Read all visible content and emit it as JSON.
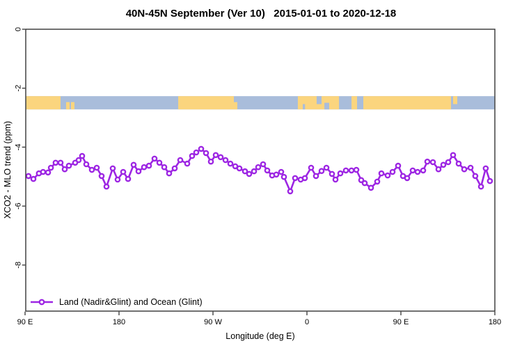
{
  "chart": {
    "title": "40N-45N September (Ver 10)   2015-01-01 to 2020-12-18",
    "x_axis": {
      "title": "Longitude (deg E)"
    },
    "y_axis": {
      "title": "XCO2 - MLO trend (ppm)"
    },
    "legend": {
      "label": "Land (Nadir&Glint) and Ocean (Glint)",
      "position": "bottom-left"
    },
    "colors": {
      "series": "#9D26E3",
      "land": "#FBD57E",
      "ocean": "#A9BDDB",
      "frame": "#333333",
      "text": "#000000",
      "background": "#FFFFFF"
    }
  },
  "chart_data": {
    "type": "line",
    "title": "40N-45N September (Ver 10)   2015-01-01 to 2020-12-18",
    "xlabel": "Longitude (deg E)",
    "ylabel": "XCO2 - MLO trend (ppm)",
    "xlim": [
      90,
      540
    ],
    "ylim": [
      -9.56,
      0
    ],
    "grid": false,
    "x_tick_positions": [
      90,
      180,
      270,
      360,
      450,
      540
    ],
    "x_tick_labels": [
      "90 E",
      "180",
      "90 W",
      "0",
      "90 E",
      "180"
    ],
    "y_tick_positions": [
      0,
      -2,
      -4,
      -6,
      -8
    ],
    "y_tick_labels": [
      "0",
      "-2",
      "-4",
      "-6",
      "-8"
    ],
    "legend_position": "bottom-left",
    "series": [
      {
        "name": "Land (Nadir&Glint) and Ocean (Glint)",
        "marker": "open-circle",
        "color": "#9D26E3",
        "points": [
          [
            93.3,
            -4.98
          ],
          [
            98.0,
            -5.08
          ],
          [
            103.3,
            -4.89
          ],
          [
            107.3,
            -4.84
          ],
          [
            112.0,
            -4.86
          ],
          [
            114.7,
            -4.7
          ],
          [
            119.3,
            -4.53
          ],
          [
            124.0,
            -4.53
          ],
          [
            128.0,
            -4.75
          ],
          [
            132.0,
            -4.63
          ],
          [
            138.0,
            -4.53
          ],
          [
            141.3,
            -4.44
          ],
          [
            144.7,
            -4.3
          ],
          [
            148.7,
            -4.58
          ],
          [
            154.0,
            -4.77
          ],
          [
            158.7,
            -4.7
          ],
          [
            163.3,
            -4.98
          ],
          [
            168.0,
            -5.34
          ],
          [
            174.0,
            -4.72
          ],
          [
            178.7,
            -5.1
          ],
          [
            184.0,
            -4.84
          ],
          [
            188.7,
            -5.08
          ],
          [
            194.0,
            -4.6
          ],
          [
            198.7,
            -4.82
          ],
          [
            204.0,
            -4.68
          ],
          [
            208.7,
            -4.63
          ],
          [
            214.0,
            -4.39
          ],
          [
            218.7,
            -4.53
          ],
          [
            223.3,
            -4.68
          ],
          [
            228.0,
            -4.89
          ],
          [
            233.3,
            -4.72
          ],
          [
            238.7,
            -4.44
          ],
          [
            245.3,
            -4.56
          ],
          [
            250.0,
            -4.3
          ],
          [
            254.0,
            -4.18
          ],
          [
            258.7,
            -4.06
          ],
          [
            263.3,
            -4.2
          ],
          [
            268.0,
            -4.49
          ],
          [
            272.7,
            -4.27
          ],
          [
            277.3,
            -4.34
          ],
          [
            282.0,
            -4.44
          ],
          [
            286.7,
            -4.56
          ],
          [
            291.3,
            -4.65
          ],
          [
            295.3,
            -4.72
          ],
          [
            300.7,
            -4.82
          ],
          [
            304.7,
            -4.91
          ],
          [
            309.3,
            -4.82
          ],
          [
            313.3,
            -4.68
          ],
          [
            318.0,
            -4.58
          ],
          [
            322.0,
            -4.79
          ],
          [
            326.7,
            -4.96
          ],
          [
            330.7,
            -4.93
          ],
          [
            335.3,
            -4.84
          ],
          [
            338.0,
            -5.01
          ],
          [
            344.0,
            -5.5
          ],
          [
            348.7,
            -5.05
          ],
          [
            354.0,
            -5.1
          ],
          [
            358.0,
            -5.05
          ],
          [
            364.0,
            -4.7
          ],
          [
            368.7,
            -4.98
          ],
          [
            374.0,
            -4.81
          ],
          [
            378.7,
            -4.7
          ],
          [
            384.0,
            -4.91
          ],
          [
            387.3,
            -5.1
          ],
          [
            392.0,
            -4.89
          ],
          [
            397.3,
            -4.79
          ],
          [
            402.7,
            -4.79
          ],
          [
            407.3,
            -4.77
          ],
          [
            412.0,
            -5.12
          ],
          [
            415.3,
            -5.22
          ],
          [
            421.3,
            -5.38
          ],
          [
            427.3,
            -5.17
          ],
          [
            431.3,
            -4.89
          ],
          [
            437.3,
            -4.96
          ],
          [
            442.0,
            -4.84
          ],
          [
            447.3,
            -4.63
          ],
          [
            452.0,
            -4.98
          ],
          [
            456.0,
            -5.05
          ],
          [
            461.3,
            -4.79
          ],
          [
            466.0,
            -4.84
          ],
          [
            471.3,
            -4.79
          ],
          [
            475.3,
            -4.49
          ],
          [
            480.7,
            -4.51
          ],
          [
            486.0,
            -4.75
          ],
          [
            490.7,
            -4.6
          ],
          [
            495.3,
            -4.51
          ],
          [
            500.0,
            -4.27
          ],
          [
            505.3,
            -4.56
          ],
          [
            510.7,
            -4.75
          ],
          [
            516.7,
            -4.7
          ],
          [
            521.3,
            -4.98
          ],
          [
            526.7,
            -5.34
          ],
          [
            531.3,
            -4.72
          ],
          [
            535.3,
            -5.15
          ]
        ]
      }
    ],
    "map_strip": {
      "description": "land-ocean strip at this latitude band",
      "top_value": -2.27,
      "bottom_value": -2.72,
      "land_color": "#FBD57E",
      "ocean_color": "#A9BDDB",
      "land_segments": [
        {
          "lon1": 90.8,
          "lon2": 124.0,
          "h": 1,
          "align": "top"
        },
        {
          "lon1": 129.3,
          "lon2": 132.7,
          "h": 0.55,
          "align": "bottom"
        },
        {
          "lon1": 134.0,
          "lon2": 137.3,
          "h": 0.55,
          "align": "bottom"
        },
        {
          "lon1": 236.7,
          "lon2": 290.0,
          "h": 1,
          "align": "top"
        },
        {
          "lon1": 290.0,
          "lon2": 293.3,
          "h": 0.55,
          "align": "bottom"
        },
        {
          "lon1": 351.3,
          "lon2": 390.7,
          "h": 1,
          "align": "top"
        },
        {
          "lon1": 402.7,
          "lon2": 408.0,
          "h": 1,
          "align": "top"
        },
        {
          "lon1": 414.0,
          "lon2": 498.0,
          "h": 1,
          "align": "top"
        },
        {
          "lon1": 500.0,
          "lon2": 504.0,
          "h": 0.6,
          "align": "top"
        }
      ],
      "water_overlays": [
        {
          "lon1": 369.3,
          "lon2": 374.0,
          "h": 0.6,
          "align": "top"
        },
        {
          "lon1": 376.7,
          "lon2": 381.3,
          "h": 0.5,
          "align": "bottom"
        },
        {
          "lon1": 356.0,
          "lon2": 358.2,
          "h": 0.4,
          "align": "bottom"
        }
      ]
    }
  }
}
